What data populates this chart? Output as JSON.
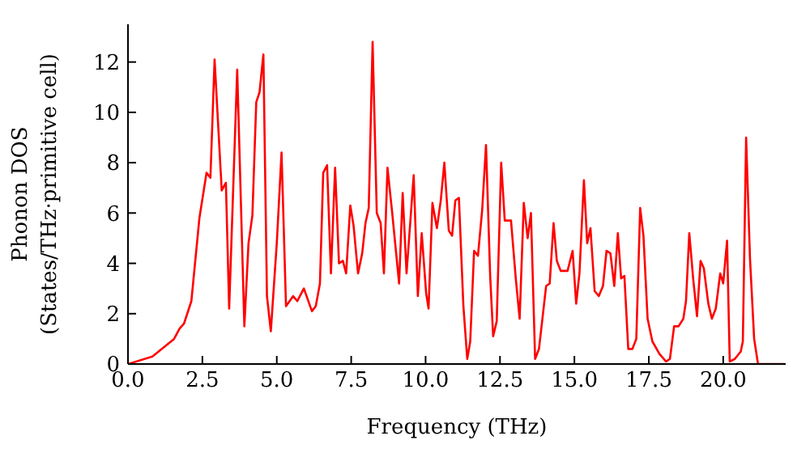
{
  "chart_data": {
    "type": "line",
    "xlabel": "Frequency (THz)",
    "ylabel": "Phonon DOS (States/THz·primitive cell)",
    "xlim": [
      0,
      22.1
    ],
    "ylim": [
      0,
      13.5
    ],
    "xticks": [
      {
        "value": 0,
        "label": "0.0"
      },
      {
        "value": 2.5,
        "label": "2.5"
      },
      {
        "value": 5,
        "label": "5.0"
      },
      {
        "value": 7.5,
        "label": "7.5"
      },
      {
        "value": 10,
        "label": "10.0"
      },
      {
        "value": 12.5,
        "label": "12.5"
      },
      {
        "value": 15,
        "label": "15.0"
      },
      {
        "value": 17.5,
        "label": "17.5"
      },
      {
        "value": 20,
        "label": "20.0"
      }
    ],
    "yticks": [
      0,
      2,
      4,
      6,
      8,
      10,
      12
    ],
    "series": [
      {
        "color": "#ff0000",
        "x": [
          0,
          0.82,
          1.55,
          1.73,
          1.88,
          2.13,
          2.4,
          2.64,
          2.77,
          2.91,
          3.15,
          3.29,
          3.4,
          3.67,
          3.91,
          4.05,
          4.18,
          4.31,
          4.42,
          4.55,
          4.67,
          4.8,
          5.0,
          5.16,
          5.31,
          5.55,
          5.69,
          5.91,
          6.18,
          6.31,
          6.45,
          6.56,
          6.69,
          6.82,
          6.96,
          7.09,
          7.22,
          7.33,
          7.47,
          7.58,
          7.73,
          7.87,
          7.98,
          8.09,
          8.22,
          8.36,
          8.49,
          8.6,
          8.72,
          8.87,
          9.11,
          9.23,
          9.36,
          9.6,
          9.74,
          9.87,
          10.02,
          10.1,
          10.23,
          10.38,
          10.51,
          10.63,
          10.78,
          10.89,
          11.0,
          11.12,
          11.27,
          11.4,
          11.5,
          11.63,
          11.76,
          11.9,
          12.03,
          12.17,
          12.27,
          12.39,
          12.54,
          12.66,
          12.87,
          13.03,
          13.16,
          13.3,
          13.43,
          13.54,
          13.68,
          13.81,
          14.05,
          14.17,
          14.3,
          14.41,
          14.54,
          14.77,
          14.94,
          15.06,
          15.17,
          15.32,
          15.43,
          15.54,
          15.68,
          15.82,
          15.96,
          16.08,
          16.21,
          16.34,
          16.46,
          16.57,
          16.68,
          16.81,
          16.95,
          17.08,
          17.21,
          17.32,
          17.46,
          17.62,
          17.86,
          18.08,
          18.21,
          18.35,
          18.5,
          18.66,
          18.75,
          18.86,
          18.99,
          19.12,
          19.24,
          19.35,
          19.5,
          19.62,
          19.75,
          19.9,
          20.0,
          20.13,
          20.22,
          20.39,
          20.59,
          20.66,
          20.77,
          20.9,
          21.04,
          21.17,
          22.07
        ],
        "values": [
          0,
          0.3,
          1.0,
          1.4,
          1.6,
          2.5,
          5.8,
          7.6,
          7.4,
          12.1,
          6.9,
          7.2,
          2.2,
          11.7,
          1.5,
          4.8,
          5.9,
          10.4,
          10.8,
          12.3,
          2.7,
          1.3,
          4.8,
          8.4,
          2.3,
          2.7,
          2.5,
          3.0,
          2.1,
          2.3,
          3.2,
          7.6,
          7.9,
          3.6,
          7.8,
          4.0,
          4.1,
          3.6,
          6.3,
          5.5,
          3.6,
          4.4,
          5.6,
          6.2,
          12.8,
          6.0,
          5.6,
          3.6,
          7.8,
          6.1,
          3.2,
          6.8,
          3.6,
          7.5,
          2.7,
          5.2,
          2.8,
          2.2,
          6.4,
          5.4,
          6.5,
          8.0,
          5.3,
          5.1,
          6.5,
          6.6,
          2.3,
          0.2,
          0.9,
          4.5,
          4.3,
          6.1,
          8.7,
          3.5,
          1.1,
          1.7,
          8.0,
          5.7,
          5.7,
          3.4,
          1.8,
          6.4,
          5.0,
          6.0,
          0.2,
          0.6,
          3.1,
          3.2,
          5.6,
          4.1,
          3.7,
          3.7,
          4.5,
          2.4,
          3.6,
          7.3,
          4.8,
          5.4,
          2.9,
          2.7,
          3.1,
          4.5,
          4.4,
          3.1,
          5.2,
          3.4,
          3.5,
          0.6,
          0.6,
          1.0,
          6.2,
          5.1,
          1.8,
          0.9,
          0.4,
          0.1,
          0.2,
          1.5,
          1.5,
          1.8,
          2.5,
          5.2,
          3.4,
          1.9,
          4.1,
          3.8,
          2.4,
          1.8,
          2.2,
          3.6,
          3.2,
          4.9,
          0.1,
          0.2,
          0.5,
          0.9,
          9.0,
          4.2,
          1.0,
          0,
          0
        ]
      }
    ]
  }
}
